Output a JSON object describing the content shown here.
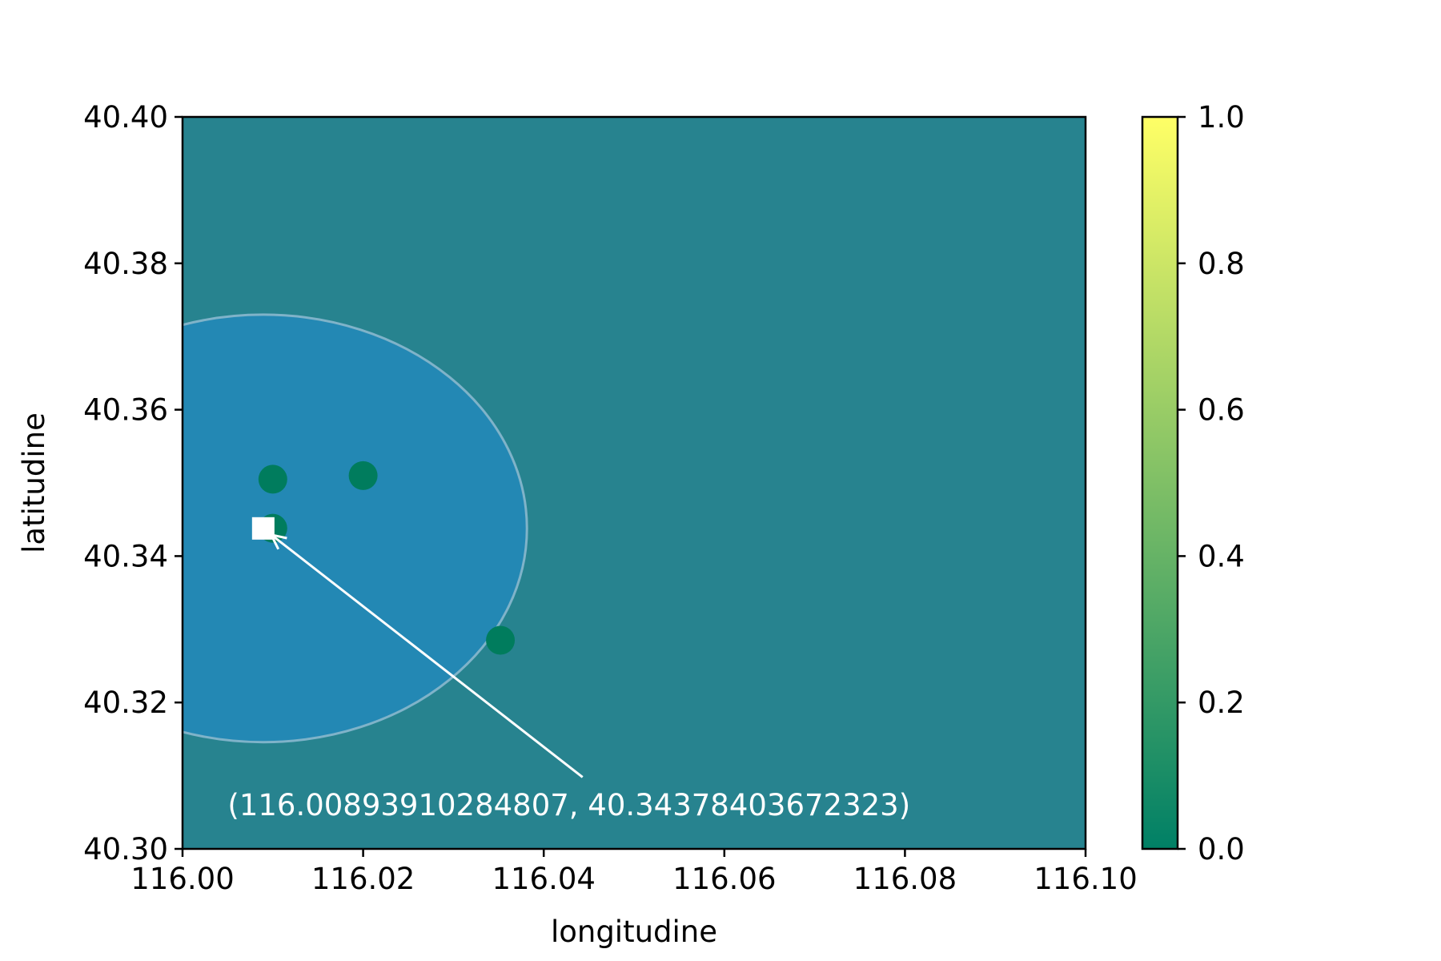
{
  "chart_data": {
    "type": "scatter",
    "xlabel": "longitudine",
    "ylabel": "latitudine",
    "xlim": [
      116.0,
      116.1
    ],
    "ylim": [
      40.3,
      40.4
    ],
    "x_ticks": [
      "116.00",
      "116.02",
      "116.04",
      "116.06",
      "116.08",
      "116.10"
    ],
    "y_ticks": [
      "40.30",
      "40.32",
      "40.34",
      "40.36",
      "40.38",
      "40.40"
    ],
    "grid": false,
    "background_color": "#27838f",
    "points": [
      {
        "x": 116.01,
        "y": 40.3505,
        "value": 0.0
      },
      {
        "x": 116.02,
        "y": 40.351,
        "value": 0.0
      },
      {
        "x": 116.01,
        "y": 40.3438,
        "value": 0.0
      },
      {
        "x": 116.0352,
        "y": 40.3285,
        "value": 0.0
      }
    ],
    "point_color": "#007c5d",
    "circle": {
      "center_x": 116.00893910284807,
      "center_y": 40.34378403672323,
      "radius_x": 0.0292,
      "radius_y": 0.0292,
      "fill": "#2388b4",
      "edge": "#7fb3c9"
    },
    "marker": {
      "x": 116.00893910284807,
      "y": 40.34378403672323,
      "shape": "square",
      "color": "#ffffff"
    },
    "annotation": {
      "text": "(116.00893910284807, 40.34378403672323)",
      "text_x": 116.005,
      "text_y": 40.306,
      "arrow_tail_x": 116.0443,
      "arrow_tail_y": 40.3098,
      "color": "#ffffff"
    },
    "colorbar": {
      "min": 0.0,
      "max": 1.0,
      "ticks": [
        "0.0",
        "0.2",
        "0.4",
        "0.6",
        "0.8",
        "1.0"
      ],
      "colormap": "summer",
      "color_low": "#008066",
      "color_high": "#ffff66"
    }
  }
}
